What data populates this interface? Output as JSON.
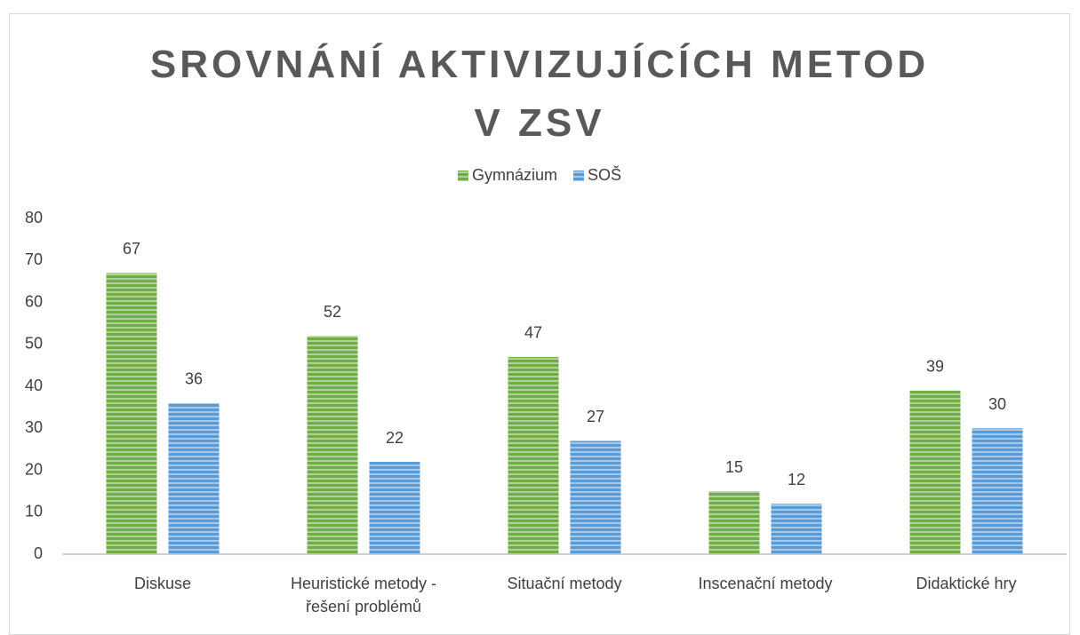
{
  "chart_data": {
    "type": "bar",
    "title": "SROVNÁNÍ AKTIVIZUJÍCÍCH METOD V ZSV",
    "categories": [
      "Diskuse",
      "Heuristické metody - řešení problémů",
      "Situační metody",
      "Inscenační metody",
      "Didaktické hry"
    ],
    "series": [
      {
        "name": "Gymnázium",
        "color": "#70ad47",
        "values": [
          67,
          52,
          47,
          15,
          39
        ]
      },
      {
        "name": "SOŠ",
        "color": "#5b9bd5",
        "values": [
          36,
          22,
          27,
          12,
          30
        ]
      }
    ],
    "ylim": [
      0,
      80
    ],
    "yticks": [
      0,
      10,
      20,
      30,
      40,
      50,
      60,
      70,
      80
    ],
    "grid": false,
    "legend": "top"
  }
}
